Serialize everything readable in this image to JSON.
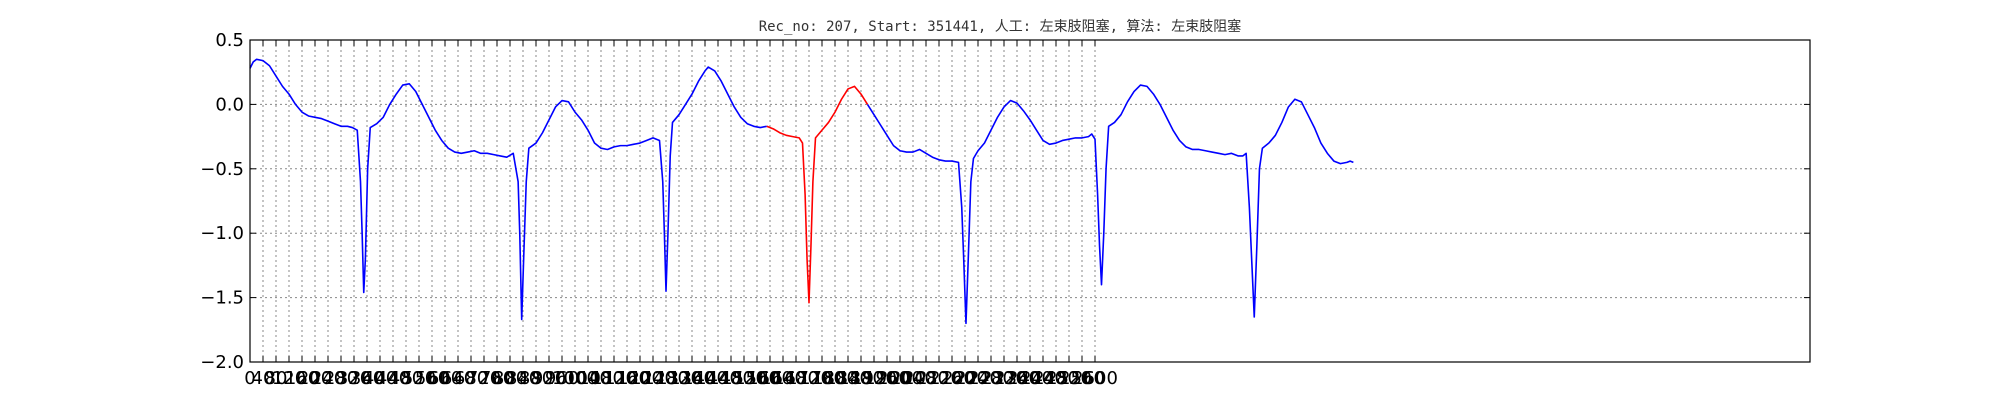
{
  "chart_data": {
    "type": "line",
    "title": "Rec_no: 207, Start: 351441, 人工: 左束肢阻塞, 算法: 左束肢阻塞",
    "xlabel": "",
    "ylabel": "",
    "xlim": [
      0,
      4800
    ],
    "ylim": [
      -2.0,
      0.5
    ],
    "grid": true,
    "x_ticks": [
      0,
      40,
      80,
      120,
      160,
      200,
      240,
      280,
      320,
      360,
      400,
      440,
      480,
      520,
      560,
      600,
      640,
      680,
      720,
      760,
      800,
      840,
      880,
      920,
      960,
      1000,
      1040,
      1080,
      1120,
      1160,
      1200,
      1240,
      1280,
      1320,
      1360,
      1400,
      1440,
      1480,
      1520,
      1560,
      1600,
      1640,
      1680,
      1720,
      1760,
      1800,
      1840,
      1880,
      1920,
      1960,
      2000,
      2040,
      2080,
      2120,
      2160,
      2200,
      2240,
      2280,
      2320,
      2360,
      2400,
      2440,
      2480,
      2520,
      2560,
      2600
    ],
    "y_ticks": [
      0.5,
      0.0,
      -0.5,
      -1.0,
      -1.5,
      -2.0
    ],
    "y_tick_labels": [
      "0.5",
      "0.0",
      "−0.5",
      "−1.0",
      "−1.5",
      "−2.0"
    ],
    "series": [
      {
        "color": "#0000ff",
        "points": [
          [
            0,
            0.28
          ],
          [
            10,
            0.33
          ],
          [
            20,
            0.35
          ],
          [
            40,
            0.34
          ],
          [
            60,
            0.3
          ],
          [
            80,
            0.22
          ],
          [
            100,
            0.14
          ],
          [
            120,
            0.08
          ],
          [
            140,
            0.0
          ],
          [
            160,
            -0.06
          ],
          [
            180,
            -0.09
          ],
          [
            200,
            -0.1
          ],
          [
            220,
            -0.11
          ],
          [
            240,
            -0.13
          ],
          [
            260,
            -0.15
          ],
          [
            280,
            -0.17
          ],
          [
            300,
            -0.17
          ],
          [
            315,
            -0.18
          ],
          [
            330,
            -0.2
          ],
          [
            340,
            -0.6
          ],
          [
            345,
            -1.0
          ],
          [
            350,
            -1.46
          ],
          [
            355,
            -1.2
          ],
          [
            362,
            -0.5
          ],
          [
            370,
            -0.18
          ],
          [
            390,
            -0.15
          ],
          [
            410,
            -0.1
          ],
          [
            430,
            0.0
          ],
          [
            450,
            0.08
          ],
          [
            470,
            0.15
          ],
          [
            490,
            0.16
          ],
          [
            510,
            0.1
          ],
          [
            530,
            0.0
          ],
          [
            550,
            -0.1
          ],
          [
            570,
            -0.2
          ],
          [
            590,
            -0.28
          ],
          [
            610,
            -0.34
          ],
          [
            630,
            -0.37
          ],
          [
            650,
            -0.38
          ],
          [
            670,
            -0.37
          ],
          [
            690,
            -0.36
          ],
          [
            710,
            -0.38
          ],
          [
            730,
            -0.38
          ],
          [
            750,
            -0.39
          ],
          [
            770,
            -0.4
          ],
          [
            790,
            -0.41
          ],
          [
            810,
            -0.38
          ],
          [
            825,
            -0.6
          ],
          [
            830,
            -1.0
          ],
          [
            836,
            -1.67
          ],
          [
            842,
            -1.2
          ],
          [
            850,
            -0.6
          ],
          [
            858,
            -0.34
          ],
          [
            880,
            -0.3
          ],
          [
            900,
            -0.22
          ],
          [
            920,
            -0.12
          ],
          [
            940,
            -0.02
          ],
          [
            960,
            0.03
          ],
          [
            980,
            0.02
          ],
          [
            1000,
            -0.06
          ],
          [
            1020,
            -0.12
          ],
          [
            1040,
            -0.2
          ],
          [
            1060,
            -0.3
          ],
          [
            1080,
            -0.34
          ],
          [
            1100,
            -0.35
          ],
          [
            1120,
            -0.33
          ],
          [
            1140,
            -0.32
          ],
          [
            1160,
            -0.32
          ],
          [
            1180,
            -0.31
          ],
          [
            1200,
            -0.3
          ],
          [
            1220,
            -0.28
          ],
          [
            1240,
            -0.26
          ],
          [
            1260,
            -0.28
          ],
          [
            1270,
            -0.6
          ],
          [
            1275,
            -1.0
          ],
          [
            1280,
            -1.45
          ],
          [
            1286,
            -1.0
          ],
          [
            1293,
            -0.4
          ],
          [
            1300,
            -0.14
          ],
          [
            1320,
            -0.08
          ],
          [
            1340,
            0.0
          ],
          [
            1360,
            0.08
          ],
          [
            1380,
            0.18
          ],
          [
            1400,
            0.26
          ],
          [
            1410,
            0.29
          ],
          [
            1430,
            0.26
          ],
          [
            1450,
            0.18
          ],
          [
            1470,
            0.08
          ],
          [
            1490,
            -0.02
          ],
          [
            1510,
            -0.1
          ],
          [
            1530,
            -0.15
          ],
          [
            1550,
            -0.17
          ],
          [
            1570,
            -0.18
          ],
          [
            1590,
            -0.17
          ]
        ]
      },
      {
        "color": "#ff0000",
        "points": [
          [
            1590,
            -0.17
          ],
          [
            1610,
            -0.19
          ],
          [
            1630,
            -0.22
          ],
          [
            1650,
            -0.24
          ],
          [
            1670,
            -0.25
          ],
          [
            1690,
            -0.26
          ],
          [
            1700,
            -0.3
          ],
          [
            1708,
            -0.7
          ],
          [
            1714,
            -1.2
          ],
          [
            1720,
            -1.54
          ],
          [
            1726,
            -1.1
          ],
          [
            1732,
            -0.6
          ],
          [
            1740,
            -0.26
          ],
          [
            1760,
            -0.2
          ],
          [
            1780,
            -0.14
          ],
          [
            1800,
            -0.06
          ],
          [
            1820,
            0.04
          ],
          [
            1840,
            0.12
          ],
          [
            1860,
            0.14
          ],
          [
            1880,
            0.08
          ],
          [
            1900,
            0.0
          ]
        ]
      },
      {
        "color": "#0000ff",
        "points": [
          [
            1900,
            0.0
          ],
          [
            1920,
            -0.08
          ],
          [
            1940,
            -0.16
          ],
          [
            1960,
            -0.24
          ],
          [
            1980,
            -0.32
          ],
          [
            2000,
            -0.36
          ],
          [
            2020,
            -0.37
          ],
          [
            2040,
            -0.37
          ],
          [
            2060,
            -0.35
          ],
          [
            2080,
            -0.38
          ],
          [
            2100,
            -0.41
          ],
          [
            2120,
            -0.43
          ],
          [
            2140,
            -0.44
          ],
          [
            2160,
            -0.44
          ],
          [
            2180,
            -0.45
          ],
          [
            2190,
            -0.8
          ],
          [
            2196,
            -1.2
          ],
          [
            2203,
            -1.7
          ],
          [
            2210,
            -1.2
          ],
          [
            2218,
            -0.6
          ],
          [
            2226,
            -0.42
          ],
          [
            2240,
            -0.36
          ],
          [
            2260,
            -0.3
          ],
          [
            2280,
            -0.2
          ],
          [
            2300,
            -0.1
          ],
          [
            2320,
            -0.02
          ],
          [
            2340,
            0.03
          ],
          [
            2360,
            0.01
          ],
          [
            2380,
            -0.05
          ],
          [
            2400,
            -0.12
          ],
          [
            2420,
            -0.2
          ],
          [
            2440,
            -0.28
          ],
          [
            2460,
            -0.31
          ],
          [
            2480,
            -0.3
          ],
          [
            2500,
            -0.28
          ],
          [
            2520,
            -0.27
          ],
          [
            2540,
            -0.26
          ],
          [
            2560,
            -0.26
          ],
          [
            2580,
            -0.25
          ],
          [
            2590,
            -0.23
          ],
          [
            2600,
            -0.27
          ],
          [
            2608,
            -0.7
          ],
          [
            2614,
            -1.1
          ],
          [
            2620,
            -1.4
          ],
          [
            2627,
            -1.0
          ],
          [
            2634,
            -0.5
          ],
          [
            2642,
            -0.17
          ],
          [
            2660,
            -0.14
          ],
          [
            2680,
            -0.08
          ],
          [
            2700,
            0.02
          ],
          [
            2720,
            0.1
          ],
          [
            2740,
            0.15
          ],
          [
            2760,
            0.14
          ],
          [
            2780,
            0.08
          ],
          [
            2800,
            0.0
          ],
          [
            2820,
            -0.1
          ],
          [
            2840,
            -0.2
          ],
          [
            2860,
            -0.28
          ],
          [
            2880,
            -0.33
          ],
          [
            2900,
            -0.35
          ],
          [
            2920,
            -0.35
          ],
          [
            2940,
            -0.36
          ],
          [
            2960,
            -0.37
          ],
          [
            2980,
            -0.38
          ],
          [
            3000,
            -0.39
          ],
          [
            3020,
            -0.38
          ],
          [
            3040,
            -0.4
          ],
          [
            3055,
            -0.4
          ],
          [
            3065,
            -0.38
          ],
          [
            3075,
            -0.8
          ],
          [
            3082,
            -1.2
          ],
          [
            3090,
            -1.65
          ],
          [
            3098,
            -1.1
          ],
          [
            3106,
            -0.5
          ],
          [
            3115,
            -0.34
          ],
          [
            3135,
            -0.3
          ],
          [
            3155,
            -0.24
          ],
          [
            3175,
            -0.14
          ],
          [
            3195,
            -0.02
          ],
          [
            3215,
            0.04
          ],
          [
            3235,
            0.02
          ],
          [
            3255,
            -0.08
          ],
          [
            3275,
            -0.18
          ],
          [
            3295,
            -0.3
          ],
          [
            3315,
            -0.38
          ],
          [
            3335,
            -0.44
          ],
          [
            3355,
            -0.46
          ],
          [
            3375,
            -0.45
          ],
          [
            3385,
            -0.44
          ],
          [
            3395,
            -0.45
          ]
        ]
      }
    ]
  }
}
